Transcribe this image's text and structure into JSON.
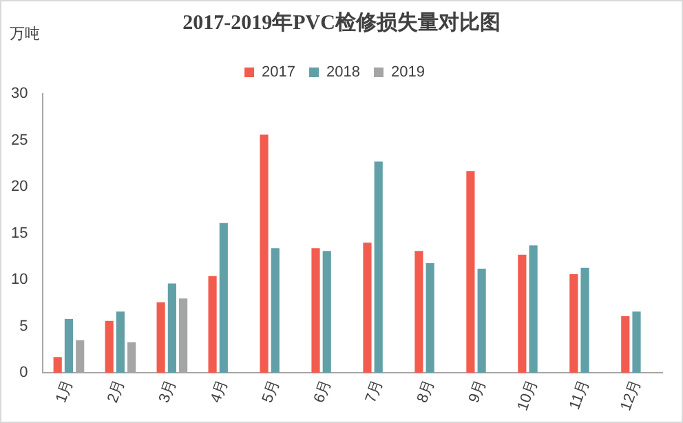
{
  "chart_data": {
    "type": "bar",
    "title": "2017-2019年PVC检修损失量对比图",
    "ylabel": "万吨",
    "categories": [
      "1月",
      "2月",
      "3月",
      "4月",
      "5月",
      "6月",
      "7月",
      "8月",
      "9月",
      "10月",
      "11月",
      "12月"
    ],
    "series": [
      {
        "name": "2017",
        "color": "#f25c4f",
        "values": [
          1.7,
          5.6,
          7.6,
          10.4,
          25.6,
          13.4,
          14.0,
          13.1,
          21.7,
          12.7,
          10.6,
          6.1
        ]
      },
      {
        "name": "2018",
        "color": "#62a0a8",
        "values": [
          5.8,
          6.6,
          9.6,
          16.1,
          13.4,
          13.1,
          22.7,
          11.8,
          11.2,
          13.7,
          11.3,
          6.6
        ]
      },
      {
        "name": "2019",
        "color": "#a5a5a5",
        "values": [
          3.5,
          3.3,
          8.0,
          null,
          null,
          null,
          null,
          null,
          null,
          null,
          null,
          null
        ]
      }
    ],
    "ylim": [
      0,
      30
    ],
    "yticks": [
      0,
      5,
      10,
      15,
      20,
      25,
      30
    ],
    "grid": false,
    "legend": "top"
  }
}
